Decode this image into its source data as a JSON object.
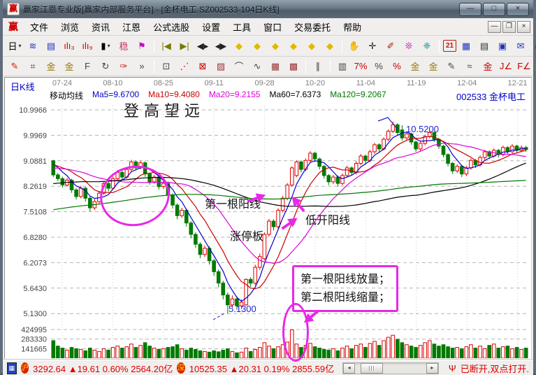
{
  "window": {
    "logo": "赢",
    "title": "赢家江恩专业版[赢家内部服务平台] - [金杯电工  SZ002533-104日K线]",
    "min_label": "—",
    "max_label": "□",
    "close_label": "×"
  },
  "menu": {
    "logo": "赢",
    "items": [
      {
        "name": "menu-file",
        "label": "文件"
      },
      {
        "name": "menu-browse",
        "label": "浏览"
      },
      {
        "name": "menu-news",
        "label": "资讯"
      },
      {
        "name": "menu-gann",
        "label": "江恩"
      },
      {
        "name": "menu-formula-pick",
        "label": "公式选股"
      },
      {
        "name": "menu-settings",
        "label": "设置"
      },
      {
        "name": "menu-tools",
        "label": "工具"
      },
      {
        "name": "menu-window",
        "label": "窗口"
      },
      {
        "name": "menu-trade",
        "label": "交易委托"
      },
      {
        "name": "menu-help",
        "label": "帮助"
      }
    ],
    "mdi": {
      "min": "—",
      "restore": "❐",
      "close": "×"
    }
  },
  "toolbar1": [
    {
      "n": "period-day-button",
      "g": "日",
      "c": "#000000",
      "dd": true
    },
    {
      "n": "winner-panel-icon",
      "g": "≋",
      "c": "#2233bb"
    },
    {
      "n": "info-doc-icon",
      "g": "▤",
      "c": "#2233bb"
    },
    {
      "n": "small-bars-3-icon",
      "g": "ılı₃",
      "c": "#cc0000"
    },
    {
      "n": "small-bars-9-icon",
      "g": "ılı₉",
      "c": "#cc0000"
    },
    {
      "n": "candle-type-button",
      "g": "▮",
      "c": "#000000",
      "dd": true
    },
    {
      "n": "kline-pattern-icon",
      "g": "稳",
      "c": "#cc3366"
    },
    {
      "n": "signal-flag-icon",
      "g": "⚑",
      "c": "#cc00cc"
    },
    "|",
    {
      "n": "first-page-icon",
      "g": "|◀",
      "c": "#7a7a00"
    },
    {
      "n": "last-page-icon",
      "g": "▶|",
      "c": "#7a7a00"
    },
    {
      "n": "page-left-icon",
      "g": "◀▸",
      "c": "#222222"
    },
    {
      "n": "page-right-icon",
      "g": "◂▶",
      "c": "#222222"
    },
    {
      "n": "diamond-left-icon",
      "g": "◆",
      "c": "#dfb900"
    },
    {
      "n": "diamond-right-icon",
      "g": "◆",
      "c": "#dfb900"
    },
    {
      "n": "diamond-expand-icon",
      "g": "◆",
      "c": "#dfb900"
    },
    {
      "n": "diamond-shrink-icon",
      "g": "◆",
      "c": "#dfb900"
    },
    {
      "n": "diamond-updown-icon",
      "g": "◆",
      "c": "#dfb900"
    },
    {
      "n": "diamond-4way-icon",
      "g": "◆",
      "c": "#dfb900"
    },
    "|",
    {
      "n": "hand-tool-icon",
      "g": "✋",
      "c": "#884400"
    },
    {
      "n": "crosshair-icon",
      "g": "✛",
      "c": "#222222"
    },
    {
      "n": "pen-magnifier-icon",
      "g": "✐",
      "c": "#aa2200"
    },
    {
      "n": "magic-tools-icon",
      "g": "❊",
      "c": "#bb22bb"
    },
    {
      "n": "brain-analysis-icon",
      "g": "❈",
      "c": "#0f9090"
    },
    "|",
    {
      "n": "calendar-icon",
      "g": "21",
      "c": "#cc1100",
      "box": true
    },
    {
      "n": "calculator-icon",
      "g": "▦",
      "c": "#2233bb"
    },
    {
      "n": "notepad-icon",
      "g": "▤",
      "c": "#333333"
    },
    {
      "n": "save-icon",
      "g": "▣",
      "c": "#2233bb"
    },
    {
      "n": "mail-transfer-icon",
      "g": "✉",
      "c": "#2233bb"
    },
    {
      "n": "printer-icon",
      "g": "⎙",
      "c": "#333333"
    }
  ],
  "toolbar2": [
    {
      "n": "draw-pen-icon",
      "g": "✎",
      "c": "#cc2200"
    },
    {
      "n": "grid-tool-icon",
      "g": "⌗",
      "c": "#444444"
    },
    {
      "n": "gann-tool-icon",
      "g": "金",
      "c": "#9a7d00"
    },
    {
      "n": "gann-tool2-icon",
      "g": "金",
      "c": "#9a7d00"
    },
    {
      "n": "fib-tool-icon",
      "g": "F",
      "c": "#444444"
    },
    {
      "n": "spiral-tool-icon",
      "g": "↻",
      "c": "#444444"
    },
    {
      "n": "annotate-pen-icon",
      "g": "✑",
      "c": "#cc2200"
    },
    {
      "n": "more-tools-chevron",
      "g": "»",
      "c": "#444444"
    },
    "|",
    {
      "n": "rect-tool-icon",
      "g": "⊡",
      "c": "#444444"
    },
    {
      "n": "fan-line-icon",
      "g": "⋰",
      "c": "#cc0000"
    },
    {
      "n": "fan-box-icon",
      "g": "⊠",
      "c": "#cc0000"
    },
    {
      "n": "grid-box-icon",
      "g": "▨",
      "c": "#993333"
    },
    {
      "n": "arc-tool-icon",
      "g": "⌒",
      "c": "#444444"
    },
    {
      "n": "wave-tool-icon",
      "g": "∿",
      "c": "#444444"
    },
    {
      "n": "price-grid-icon",
      "g": "▦",
      "c": "#993333"
    },
    {
      "n": "time-grid-icon",
      "g": "▩",
      "c": "#993333"
    },
    "|",
    {
      "n": "parallel-lines-icon",
      "g": "∥",
      "c": "#444444"
    },
    "|",
    {
      "n": "stat-bars-icon",
      "g": "▥",
      "c": "#444444"
    },
    {
      "n": "percent-retrace-icon",
      "g": "7%",
      "c": "#cc0000"
    },
    {
      "n": "percent-icon",
      "g": "%",
      "c": "#444444"
    },
    {
      "n": "percent-line-icon",
      "g": "%",
      "c": "#cc0000"
    },
    {
      "n": "gann-circle-icon",
      "g": "金",
      "c": "#9a7d00"
    },
    {
      "n": "gann-underline-icon",
      "g": "金",
      "c": "#9a7d00"
    },
    {
      "n": "candle-pen-icon",
      "g": "✎",
      "c": "#444444"
    },
    {
      "n": "wave-candle-icon",
      "g": "≈",
      "c": "#444444"
    },
    {
      "n": "gann-line-icon",
      "g": "金",
      "c": "#cc0000"
    },
    {
      "n": "angle-J-icon",
      "g": "J∠",
      "c": "#cc0000"
    },
    {
      "n": "angle-F-icon",
      "g": "F∠",
      "c": "#cc0000"
    },
    {
      "n": "angle-gold-icon",
      "g": "金∠",
      "c": "#9a7d00"
    },
    {
      "n": "angle-shen-icon",
      "g": "神∠",
      "c": "#cc0000"
    },
    {
      "n": "angle-win-icon",
      "g": "赢∠",
      "c": "#cc0000"
    },
    {
      "n": "angle-four-icon",
      "g": "四∠",
      "c": "#cc0000"
    }
  ],
  "chart": {
    "type_label": "日K线",
    "symbol": "002533 金杯电工",
    "ma_labels": [
      {
        "text": "移动均线",
        "color": "#000000"
      },
      {
        "text": "Ma5=9.6700",
        "color": "#0000cc"
      },
      {
        "text": "Ma10=9.4080",
        "color": "#cc0000"
      },
      {
        "text": "Ma20=9.2155",
        "color": "#dd00dd"
      },
      {
        "text": "Ma60=7.6373",
        "color": "#000000"
      },
      {
        "text": "Ma120=9.2067",
        "color": "#007700"
      }
    ],
    "annotations": {
      "title": "登高望远",
      "first_yang": "第一根阳线",
      "low_open_yang": "低开阳线",
      "limit_up": "涨停板",
      "low_label": "5.1300",
      "high_label": "10.5200",
      "box_line1": "第一根阳线放量；",
      "box_line2": "第二根阳线缩量；"
    }
  },
  "chart_data": {
    "type": "candlestick+volume",
    "ylog": true,
    "x_labels": [
      "07-24",
      "08-10",
      "08-25",
      "09-11",
      "09-28",
      "10-20",
      "11-04",
      "11-19",
      "12-04",
      "12-21"
    ],
    "price_ticks": [
      10.9966,
      9.9969,
      9.0881,
      8.2619,
      7.5108,
      6.828,
      6.2073,
      5.643,
      5.13
    ],
    "price_tick_labels": [
      "10.9966",
      "9.9969",
      "9.0881",
      "8.2619",
      "7.5108",
      "6.8280",
      "6.2073",
      "5.6430",
      "5.1300"
    ],
    "volume_ticks": [
      424995,
      283330,
      141665
    ],
    "volume_tick_labels": [
      "424995",
      "283330",
      "141665"
    ],
    "ma_periods": [
      5,
      10,
      20,
      60,
      120
    ],
    "ma_seed": {
      "from": 6.0,
      "to": 9.09,
      "count": 120
    },
    "colors": {
      "up": "#dd0000",
      "down": "#007a00",
      "ma5": "#0000cc",
      "ma10": "#cc0000",
      "ma20": "#dd00dd",
      "ma60": "#000000",
      "ma120": "#007700",
      "grid": "#b4b4b4",
      "vgrid": "#cccccc",
      "tick": "#444444",
      "date": "#808080",
      "pointer": "#2222cc"
    },
    "candles": [
      [
        9.09,
        8.62,
        8.55,
        9.12
      ],
      [
        8.62,
        8.5,
        8.42,
        8.68
      ],
      [
        8.5,
        8.3,
        8.22,
        8.56
      ],
      [
        8.3,
        8.45,
        8.25,
        8.52
      ],
      [
        8.45,
        8.15,
        8.06,
        8.5
      ],
      [
        8.15,
        7.95,
        7.86,
        8.2
      ],
      [
        7.95,
        8.2,
        7.9,
        8.27
      ],
      [
        8.2,
        7.9,
        7.8,
        8.25
      ],
      [
        7.9,
        7.62,
        7.52,
        7.95
      ],
      [
        7.62,
        7.8,
        7.56,
        7.88
      ],
      [
        7.8,
        8.05,
        7.74,
        8.12
      ],
      [
        8.05,
        8.35,
        8.0,
        8.42
      ],
      [
        8.35,
        8.2,
        8.1,
        8.41
      ],
      [
        8.2,
        8.5,
        8.15,
        8.57
      ],
      [
        8.5,
        8.7,
        8.44,
        8.78
      ],
      [
        8.7,
        8.55,
        8.46,
        8.76
      ],
      [
        8.55,
        8.8,
        8.5,
        8.87
      ],
      [
        8.8,
        9.05,
        8.74,
        9.12
      ],
      [
        9.05,
        8.85,
        8.76,
        9.1
      ],
      [
        8.85,
        9.02,
        8.8,
        9.09
      ],
      [
        9.02,
        8.65,
        8.56,
        9.07
      ],
      [
        8.65,
        8.4,
        8.31,
        8.7
      ],
      [
        8.4,
        8.55,
        8.34,
        8.62
      ],
      [
        8.55,
        8.25,
        8.16,
        8.6
      ],
      [
        8.25,
        8.35,
        8.18,
        8.43
      ],
      [
        8.35,
        8.0,
        7.91,
        8.4
      ],
      [
        8.0,
        7.7,
        7.6,
        8.05
      ],
      [
        7.7,
        7.4,
        7.3,
        7.75
      ],
      [
        7.4,
        7.55,
        7.34,
        7.62
      ],
      [
        7.55,
        7.2,
        7.1,
        7.6
      ],
      [
        7.2,
        6.9,
        6.8,
        7.25
      ],
      [
        6.9,
        6.65,
        6.56,
        6.95
      ],
      [
        6.65,
        6.4,
        6.31,
        6.7
      ],
      [
        6.4,
        6.55,
        6.34,
        6.62
      ],
      [
        6.55,
        6.25,
        6.16,
        6.6
      ],
      [
        6.25,
        6.0,
        5.91,
        6.3
      ],
      [
        6.0,
        5.75,
        5.66,
        6.05
      ],
      [
        5.75,
        5.5,
        5.41,
        5.8
      ],
      [
        5.5,
        5.3,
        5.13,
        5.55
      ],
      [
        5.3,
        5.42,
        5.24,
        5.49
      ],
      [
        5.42,
        5.28,
        5.2,
        5.47
      ],
      [
        5.28,
        5.35,
        5.22,
        5.41
      ],
      [
        5.3,
        5.83,
        5.28,
        5.85
      ],
      [
        5.83,
        5.75,
        5.67,
        5.88
      ],
      [
        5.75,
        6.1,
        5.7,
        6.16
      ],
      [
        6.1,
        6.35,
        6.04,
        6.42
      ],
      [
        6.3,
        6.9,
        6.26,
        6.95
      ],
      [
        6.9,
        7.25,
        6.84,
        7.31
      ],
      [
        7.25,
        7.1,
        7.0,
        7.3
      ],
      [
        7.1,
        7.55,
        7.05,
        7.61
      ],
      [
        7.55,
        7.9,
        7.49,
        7.97
      ],
      [
        7.9,
        8.3,
        7.84,
        8.36
      ],
      [
        8.3,
        8.85,
        8.25,
        8.9
      ],
      [
        8.6,
        9.05,
        8.55,
        9.1
      ],
      [
        9.05,
        8.8,
        8.7,
        9.1
      ],
      [
        8.8,
        9.1,
        8.74,
        9.17
      ],
      [
        9.1,
        9.35,
        9.03,
        9.42
      ],
      [
        9.35,
        9.15,
        9.05,
        9.4
      ],
      [
        9.15,
        8.9,
        8.8,
        9.2
      ],
      [
        8.9,
        8.6,
        8.5,
        8.95
      ],
      [
        8.6,
        8.4,
        8.3,
        8.65
      ],
      [
        8.4,
        8.55,
        8.33,
        8.62
      ],
      [
        8.55,
        8.35,
        8.25,
        8.6
      ],
      [
        8.35,
        8.6,
        8.29,
        8.67
      ],
      [
        8.6,
        8.85,
        8.54,
        8.92
      ],
      [
        8.85,
        8.7,
        8.6,
        8.9
      ],
      [
        8.7,
        9.0,
        8.64,
        9.07
      ],
      [
        9.0,
        9.25,
        8.94,
        9.32
      ],
      [
        9.25,
        9.1,
        9.0,
        9.3
      ],
      [
        9.1,
        9.4,
        9.04,
        9.47
      ],
      [
        9.4,
        9.65,
        9.33,
        9.72
      ],
      [
        9.65,
        9.5,
        9.4,
        9.7
      ],
      [
        9.5,
        9.85,
        9.44,
        9.92
      ],
      [
        9.85,
        10.15,
        9.78,
        10.22
      ],
      [
        10.15,
        10.4,
        10.08,
        10.52
      ],
      [
        10.4,
        10.1,
        10.0,
        10.46
      ],
      [
        10.2,
        9.9,
        9.8,
        10.38
      ],
      [
        9.9,
        10.05,
        9.83,
        10.13
      ],
      [
        10.05,
        9.75,
        9.65,
        10.1
      ],
      [
        9.75,
        9.5,
        9.4,
        9.8
      ],
      [
        9.5,
        9.7,
        9.43,
        9.78
      ],
      [
        9.7,
        9.95,
        9.63,
        10.02
      ],
      [
        9.95,
        10.1,
        9.88,
        10.18
      ],
      [
        10.1,
        9.85,
        9.75,
        10.15
      ],
      [
        9.85,
        9.6,
        9.5,
        9.9
      ],
      [
        9.6,
        9.3,
        9.2,
        9.65
      ],
      [
        9.3,
        9.0,
        8.9,
        9.35
      ],
      [
        9.0,
        8.75,
        8.65,
        9.05
      ],
      [
        8.75,
        8.9,
        8.68,
        8.97
      ],
      [
        8.9,
        8.65,
        8.55,
        8.95
      ],
      [
        8.65,
        8.85,
        8.58,
        8.92
      ],
      [
        8.85,
        9.1,
        8.79,
        9.17
      ],
      [
        9.1,
        8.95,
        8.85,
        9.15
      ],
      [
        8.95,
        9.2,
        8.89,
        9.27
      ],
      [
        9.2,
        9.4,
        9.13,
        9.47
      ],
      [
        9.4,
        9.25,
        9.15,
        9.45
      ],
      [
        9.25,
        9.45,
        9.19,
        9.52
      ],
      [
        9.45,
        9.3,
        9.2,
        9.5
      ],
      [
        9.3,
        9.55,
        9.24,
        9.62
      ],
      [
        9.55,
        9.4,
        9.3,
        9.6
      ],
      [
        9.4,
        9.6,
        9.34,
        9.67
      ],
      [
        9.6,
        9.45,
        9.35,
        9.65
      ],
      [
        9.45,
        9.55,
        9.38,
        9.62
      ],
      [
        9.55,
        9.48,
        9.4,
        9.61
      ]
    ],
    "volumes": [
      260000,
      180000,
      150000,
      120000,
      160000,
      140000,
      130000,
      110000,
      150000,
      120000,
      100000,
      140000,
      120000,
      160000,
      180000,
      150000,
      170000,
      210000,
      160000,
      190000,
      230000,
      180000,
      150000,
      130000,
      140000,
      160000,
      170000,
      200000,
      140000,
      120000,
      150000,
      130000,
      110000,
      100000,
      90000,
      110000,
      95000,
      120000,
      140000,
      100000,
      80000,
      90000,
      150000,
      100000,
      130000,
      160000,
      230000,
      180000,
      140000,
      170000,
      200000,
      240000,
      420000,
      210000,
      160000,
      190000,
      220000,
      170000,
      150000,
      130000,
      120000,
      140000,
      110000,
      150000,
      180000,
      140000,
      190000,
      210000,
      160000,
      220000,
      250000,
      190000,
      260000,
      310000,
      340000,
      280000,
      230000,
      200000,
      180000,
      160000,
      190000,
      230000,
      260000,
      210000,
      180000,
      200000,
      170000,
      150000,
      160000,
      140000,
      170000,
      200000,
      150000,
      180000,
      140000,
      190000,
      210000,
      150000,
      170000,
      180000,
      140000,
      160000,
      130000,
      150000
    ]
  },
  "status": {
    "sh": {
      "badge": "沪",
      "text": "3292.64 ▲19.61 0.60% 2564.20亿"
    },
    "sz": {
      "badge": "深",
      "text": "10525.35 ▲20.31 0.19% 2855.59亿"
    },
    "connection": "已断开,双点打开."
  }
}
